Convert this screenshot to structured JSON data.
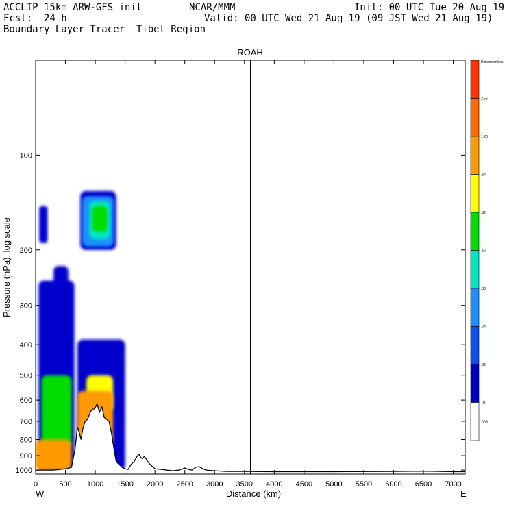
{
  "header": {
    "model": "ACCLIP 15km ARW-GFS init",
    "center": "NCAR/MMM",
    "init": "Init: 00 UTC Tue 20 Aug 19",
    "fcst": "Fcst:  24 h",
    "valid": "Valid: 00 UTC Wed 21 Aug 19 (09 JST Wed 21 Aug 19)",
    "product": "Boundary Layer Tracer  Tibet Region"
  },
  "chart_data": {
    "type": "heatmap",
    "title": "ROAH",
    "xlabel": "Distance (km)",
    "ylabel": "Pressure (hPa), log scale",
    "x_start_label": "W",
    "x_end_label": "E",
    "xlim": [
      0,
      7200
    ],
    "ylim": [
      1030,
      50
    ],
    "yscale": "log",
    "x_ticks": [
      0,
      500,
      1000,
      1500,
      2000,
      2500,
      3000,
      3500,
      4000,
      4500,
      5000,
      5500,
      6000,
      6500,
      7000
    ],
    "y_ticks": [
      100,
      200,
      300,
      400,
      500,
      600,
      700,
      800,
      900,
      1000
    ],
    "marker_line_x_km": 3600,
    "colorbar": {
      "title": "Dimensionless",
      "levels": [
        "2.56",
        "1.28",
        ".64",
        ".32",
        ".16",
        ".08",
        ".04",
        ".02",
        ".01",
        ".005"
      ],
      "colors": [
        "#ff3300",
        "#ff6a00",
        "#ff9a00",
        "#ffff00",
        "#00dd00",
        "#00e5c0",
        "#1e90ff",
        "#0a50f0",
        "#0000cc",
        "#ffffff"
      ]
    },
    "terrain": [
      [
        0,
        1000
      ],
      [
        300,
        1000
      ],
      [
        520,
        990
      ],
      [
        600,
        980
      ],
      [
        660,
        860
      ],
      [
        700,
        730
      ],
      [
        730,
        760
      ],
      [
        760,
        800
      ],
      [
        790,
        740
      ],
      [
        830,
        700
      ],
      [
        870,
        690
      ],
      [
        910,
        660
      ],
      [
        950,
        640
      ],
      [
        990,
        640
      ],
      [
        1030,
        615
      ],
      [
        1070,
        655
      ],
      [
        1110,
        630
      ],
      [
        1150,
        680
      ],
      [
        1190,
        690
      ],
      [
        1230,
        700
      ],
      [
        1270,
        760
      ],
      [
        1310,
        850
      ],
      [
        1350,
        940
      ],
      [
        1400,
        960
      ],
      [
        1450,
        980
      ],
      [
        1500,
        990
      ],
      [
        1550,
        995
      ],
      [
        1600,
        960
      ],
      [
        1650,
        940
      ],
      [
        1700,
        905
      ],
      [
        1730,
        890
      ],
      [
        1760,
        910
      ],
      [
        1790,
        920
      ],
      [
        1820,
        905
      ],
      [
        1850,
        920
      ],
      [
        1880,
        940
      ],
      [
        1920,
        960
      ],
      [
        1960,
        975
      ],
      [
        2000,
        990
      ],
      [
        2100,
        995
      ],
      [
        2200,
        1000
      ],
      [
        2300,
        1005
      ],
      [
        2400,
        1000
      ],
      [
        2500,
        985
      ],
      [
        2560,
        995
      ],
      [
        2620,
        1000
      ],
      [
        2680,
        980
      ],
      [
        2740,
        975
      ],
      [
        2800,
        990
      ],
      [
        2860,
        1000
      ],
      [
        3000,
        1005
      ],
      [
        3200,
        1010
      ],
      [
        3500,
        1010
      ],
      [
        4000,
        1012
      ],
      [
        5000,
        1012
      ],
      [
        6000,
        1010
      ],
      [
        6500,
        1008
      ],
      [
        7000,
        1012
      ],
      [
        7200,
        1012
      ]
    ],
    "tracer_regions": [
      {
        "level": ".01",
        "color": "#0000cc",
        "x": [
          50,
          650
        ],
        "p": [
          250,
          1000
        ]
      },
      {
        "level": ".01",
        "color": "#0000cc",
        "x": [
          60,
          200
        ],
        "p": [
          145,
          190
        ]
      },
      {
        "level": ".01",
        "color": "#0000cc",
        "x": [
          300,
          550
        ],
        "p": [
          225,
          330
        ]
      },
      {
        "level": ".01",
        "color": "#0000cc",
        "x": [
          700,
          1500
        ],
        "p": [
          385,
          1000
        ]
      },
      {
        "level": ".01",
        "color": "#0000cc",
        "x": [
          750,
          1350
        ],
        "p": [
          130,
          200
        ]
      },
      {
        "level": ".02",
        "color": "#1e90ff",
        "x": [
          780,
          1310
        ],
        "p": [
          135,
          195
        ]
      },
      {
        "level": ".08",
        "color": "#00e5c0",
        "x": [
          900,
          1250
        ],
        "p": [
          140,
          185
        ]
      },
      {
        "level": ".16",
        "color": "#00dd00",
        "x": [
          950,
          1200
        ],
        "p": [
          145,
          175
        ]
      },
      {
        "level": ".16",
        "color": "#00dd00",
        "x": [
          100,
          600
        ],
        "p": [
          500,
          850
        ]
      },
      {
        "level": ".32",
        "color": "#ffff00",
        "x": [
          850,
          1300
        ],
        "p": [
          500,
          650
        ]
      },
      {
        "level": ".64",
        "color": "#ff9a00",
        "x": [
          0,
          600
        ],
        "p": [
          800,
          1000
        ]
      },
      {
        "level": ".64",
        "color": "#ff9a00",
        "x": [
          700,
          1300
        ],
        "p": [
          560,
          850
        ]
      }
    ]
  }
}
